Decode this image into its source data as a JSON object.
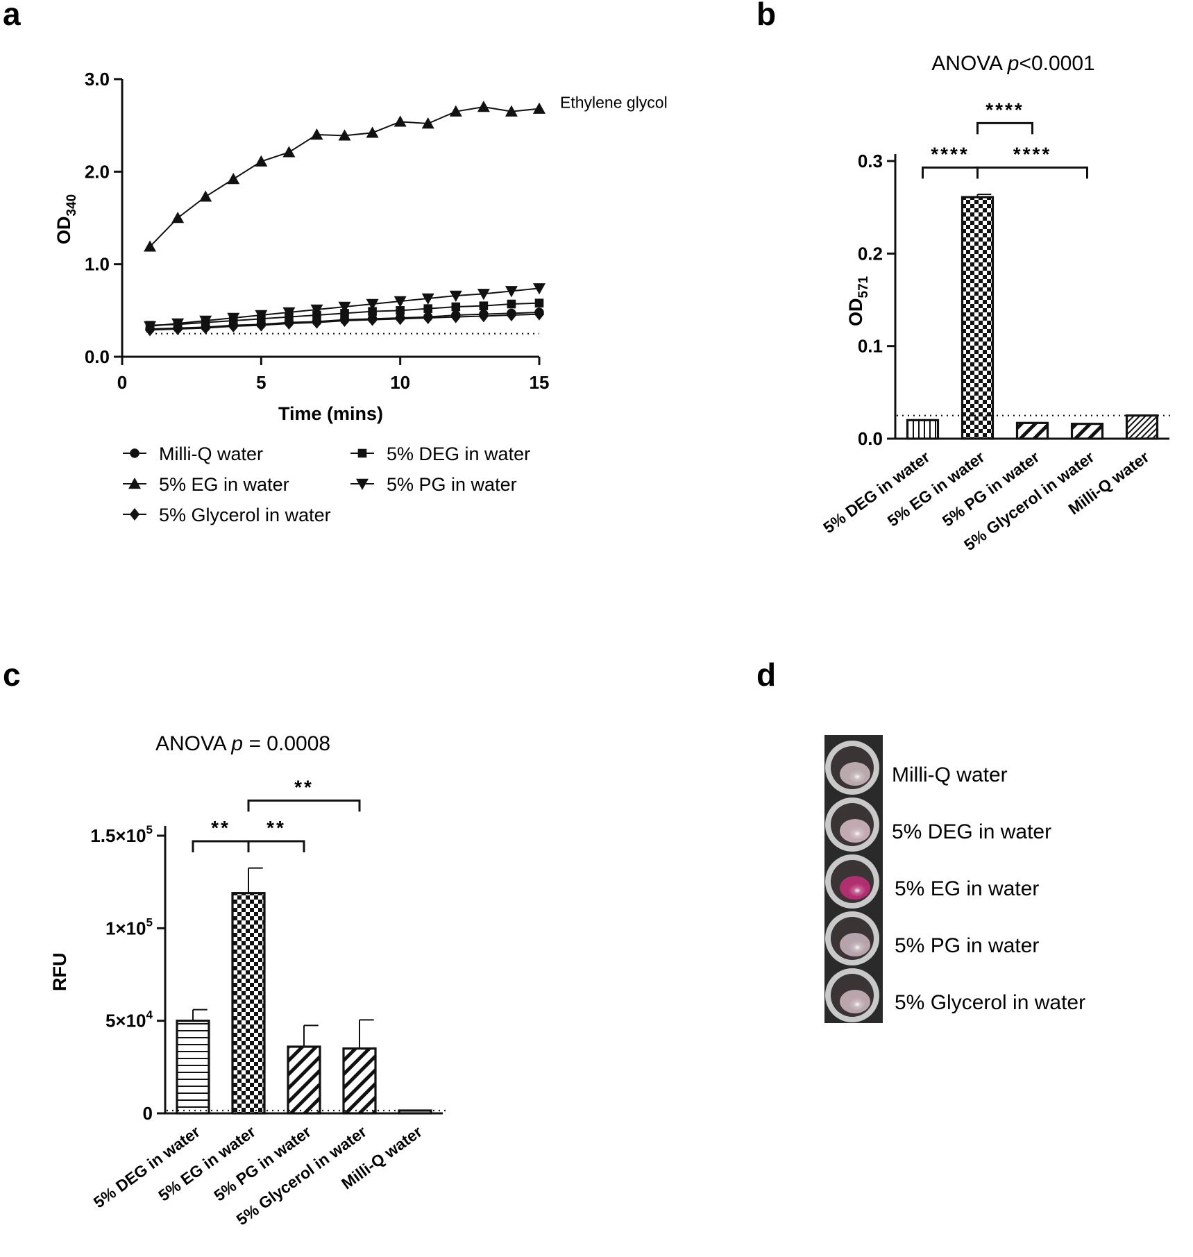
{
  "panels": {
    "a": {
      "letter": "a"
    },
    "b": {
      "letter": "b"
    },
    "c": {
      "letter": "c"
    },
    "d": {
      "letter": "d"
    }
  },
  "colors": {
    "ink": "#111111",
    "eg_well": "#b0306e",
    "well_rim": "#c9c9c9",
    "well_inner": "#3b3434",
    "photo_bg": "#2a2a2a"
  },
  "chart_data": [
    {
      "id": "a",
      "type": "line",
      "xlabel": "Time (mins)",
      "ylabel_main": "OD",
      "ylabel_sub": "340",
      "xlim": [
        0,
        15
      ],
      "ylim": [
        0,
        3.0
      ],
      "xticks": [
        0,
        5,
        10,
        15
      ],
      "xtick_labels": [
        "0",
        "5",
        "10",
        "15"
      ],
      "yticks": [
        0,
        1,
        2,
        3
      ],
      "ytick_labels": [
        "0.0",
        "1.0",
        "2.0",
        "3.0"
      ],
      "baseline": 0.25,
      "annotation": "Ethylene glycol",
      "x": [
        1,
        2,
        3,
        4,
        5,
        6,
        7,
        8,
        9,
        10,
        11,
        12,
        13,
        14,
        15
      ],
      "series": [
        {
          "name": "Milli-Q water",
          "marker": "circle",
          "values": [
            0.3,
            0.31,
            0.32,
            0.34,
            0.35,
            0.37,
            0.38,
            0.4,
            0.41,
            0.42,
            0.43,
            0.45,
            0.46,
            0.47,
            0.48
          ]
        },
        {
          "name": "5% DEG in water",
          "marker": "square",
          "values": [
            0.34,
            0.35,
            0.37,
            0.39,
            0.41,
            0.43,
            0.45,
            0.47,
            0.49,
            0.5,
            0.52,
            0.54,
            0.55,
            0.57,
            0.58
          ]
        },
        {
          "name": "5% EG in water",
          "marker": "triangle-up",
          "values": [
            1.19,
            1.5,
            1.73,
            1.92,
            2.11,
            2.21,
            2.4,
            2.39,
            2.42,
            2.54,
            2.52,
            2.65,
            2.7,
            2.65,
            2.68
          ]
        },
        {
          "name": "5% PG in water",
          "marker": "triangle-down",
          "values": [
            0.33,
            0.36,
            0.39,
            0.42,
            0.45,
            0.48,
            0.51,
            0.54,
            0.57,
            0.6,
            0.63,
            0.66,
            0.68,
            0.71,
            0.74
          ]
        },
        {
          "name": "5% Glycerol in water",
          "marker": "diamond",
          "values": [
            0.29,
            0.3,
            0.31,
            0.33,
            0.34,
            0.36,
            0.37,
            0.39,
            0.4,
            0.41,
            0.42,
            0.43,
            0.44,
            0.45,
            0.46
          ]
        }
      ],
      "legend_order": [
        0,
        1,
        2,
        3,
        4
      ]
    },
    {
      "id": "b",
      "type": "bar",
      "title_prefix": "ANOVA ",
      "title_italic": "p",
      "title_suffix": "<0.0001",
      "ylabel_main": "OD",
      "ylabel_sub": "571",
      "ylim": [
        0,
        0.3
      ],
      "yticks": [
        0,
        0.1,
        0.2,
        0.3
      ],
      "ytick_labels": [
        "0.0",
        "0.1",
        "0.2",
        "0.3"
      ],
      "baseline": 0.025,
      "categories": [
        "5% DEG in water",
        "5% EG in water",
        "5% PG in water",
        "5% Glycerol in water",
        "Milli-Q water"
      ],
      "values": [
        0.02,
        0.261,
        0.017,
        0.016,
        0.025
      ],
      "errors": [
        0.0,
        0.003,
        0.0,
        0.0,
        0.0
      ],
      "patterns": [
        "vstripe",
        "checker",
        "diag-wide",
        "diag-wide",
        "diag-fine"
      ],
      "significance": [
        {
          "from": 0,
          "to": 1,
          "label": "****",
          "level": 0.293
        },
        {
          "from": 1,
          "to": 2,
          "label": "****",
          "level": 0.341
        },
        {
          "from": 1,
          "to": 3,
          "label": "****",
          "level": 0.293
        }
      ]
    },
    {
      "id": "c",
      "type": "bar",
      "title_prefix": "ANOVA ",
      "title_italic": "p",
      "title_suffix": " = 0.0008",
      "ylabel_main": "RFU",
      "ylim": [
        0,
        150000
      ],
      "yticks": [
        0,
        50000,
        100000,
        150000
      ],
      "ytick_bases": [
        "0",
        "5×10",
        "1×10",
        "1.5×10"
      ],
      "ytick_exps": [
        "",
        "4",
        "5",
        "5"
      ],
      "baseline": 1500,
      "categories": [
        "5% DEG in water",
        "5% EG in water",
        "5% PG in water",
        "5% Glycerol in water",
        "Milli-Q water"
      ],
      "values": [
        50000,
        119000,
        36000,
        35000,
        1500
      ],
      "errors": [
        6000,
        13500,
        11500,
        15500,
        0
      ],
      "patterns": [
        "hstripe",
        "checker",
        "diag-wide",
        "diag-wide",
        "none"
      ],
      "significance": [
        {
          "from": 0,
          "to": 1,
          "label": "**",
          "level": 147000
        },
        {
          "from": 1,
          "to": 2,
          "label": "**",
          "level": 147000
        },
        {
          "from": 1,
          "to": 3,
          "label": "**",
          "level": 169000
        }
      ]
    }
  ],
  "wells": {
    "items": [
      {
        "label": "Milli-Q  water",
        "tint": "#b9a9ad"
      },
      {
        "label": "5% DEG in water",
        "tint": "#c2aab2"
      },
      {
        "label": "5% EG in water",
        "tint": "#b12f71"
      },
      {
        "label": "5% PG in water",
        "tint": "#b7a3ab"
      },
      {
        "label": "5% Glycerol  in water",
        "tint": "#b9a6ac"
      }
    ]
  }
}
